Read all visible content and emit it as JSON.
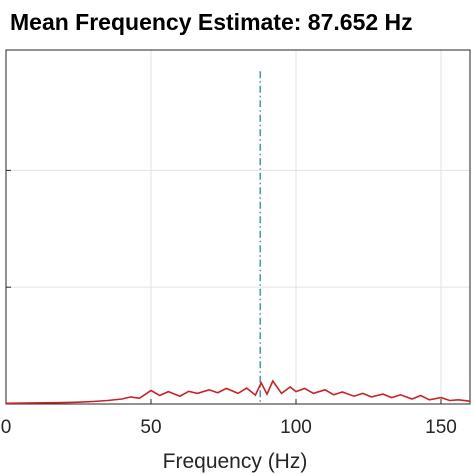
{
  "chart_data": {
    "type": "line",
    "title": "Mean Frequency Estimate: 87.652 Hz",
    "xlabel": "Frequency (Hz)",
    "ylabel": "",
    "xlim": [
      0,
      160
    ],
    "ylim": [
      0,
      1
    ],
    "x_ticks": [
      0,
      50,
      100,
      150
    ],
    "x_tick_labels": [
      "0",
      "50",
      "100",
      "150"
    ],
    "y_ticks": [
      0,
      0.33,
      0.66,
      1.0
    ],
    "grid": true,
    "mean_frequency": 87.652,
    "series": [
      {
        "color": "#cc2222",
        "x": [
          0,
          10,
          20,
          25,
          30,
          35,
          40,
          43,
          46,
          50,
          53,
          56,
          60,
          63,
          66,
          70,
          73,
          76,
          80,
          83,
          86,
          88,
          90,
          92,
          95,
          98,
          100,
          103,
          106,
          110,
          113,
          116,
          120,
          123,
          126,
          130,
          133,
          136,
          140,
          143,
          146,
          150,
          153,
          156,
          160
        ],
        "values": [
          0.002,
          0.003,
          0.004,
          0.005,
          0.007,
          0.01,
          0.014,
          0.02,
          0.016,
          0.038,
          0.024,
          0.035,
          0.022,
          0.036,
          0.03,
          0.04,
          0.032,
          0.044,
          0.03,
          0.045,
          0.025,
          0.06,
          0.028,
          0.065,
          0.03,
          0.048,
          0.035,
          0.044,
          0.03,
          0.04,
          0.026,
          0.034,
          0.022,
          0.03,
          0.02,
          0.028,
          0.018,
          0.026,
          0.014,
          0.024,
          0.012,
          0.018,
          0.01,
          0.012,
          0.008
        ]
      }
    ],
    "mean_line": {
      "color": "#2a8a9a"
    }
  }
}
